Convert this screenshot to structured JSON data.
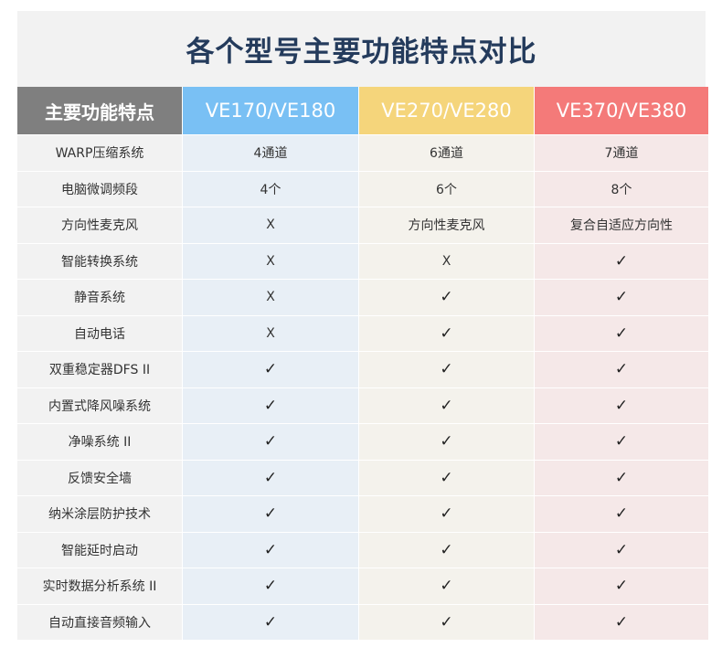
{
  "title": "各个型号主要功能特点对比",
  "headers": [
    "主要功能特点",
    "VE170/VE180",
    "VE270/VE280",
    "VE370/VE380"
  ],
  "colors": {
    "feature_header": "#7f7f7f",
    "col1": "#79c0f4",
    "col2": "#f5d57b",
    "col3": "#f47a79",
    "title": "#243b5c"
  },
  "rows": [
    {
      "feature": "WARP压缩系统",
      "values": [
        "4通道",
        "6通道",
        "7通道"
      ]
    },
    {
      "feature": "电脑微调频段",
      "values": [
        "4个",
        "6个",
        "8个"
      ]
    },
    {
      "feature": "方向性麦克风",
      "values": [
        "X",
        "方向性麦克风",
        "复合自适应方向性"
      ]
    },
    {
      "feature": "智能转换系统",
      "values": [
        "X",
        "X",
        "✓"
      ]
    },
    {
      "feature": "静音系统",
      "values": [
        "X",
        "✓",
        "✓"
      ]
    },
    {
      "feature": "自动电话",
      "values": [
        "X",
        "✓",
        "✓"
      ]
    },
    {
      "feature": "双重稳定器DFS II",
      "values": [
        "✓",
        "✓",
        "✓"
      ]
    },
    {
      "feature": "内置式降风噪系统",
      "values": [
        "✓",
        "✓",
        "✓"
      ]
    },
    {
      "feature": "净噪系统 II",
      "values": [
        "✓",
        "✓",
        "✓"
      ]
    },
    {
      "feature": "反馈安全墙",
      "values": [
        "✓",
        "✓",
        "✓"
      ]
    },
    {
      "feature": "纳米涂层防护技术",
      "values": [
        "✓",
        "✓",
        "✓"
      ]
    },
    {
      "feature": "智能延时启动",
      "values": [
        "✓",
        "✓",
        "✓"
      ]
    },
    {
      "feature": "实时数据分析系统 II",
      "values": [
        "✓",
        "✓",
        "✓"
      ]
    },
    {
      "feature": "自动直接音频输入",
      "values": [
        "✓",
        "✓",
        "✓"
      ]
    }
  ]
}
